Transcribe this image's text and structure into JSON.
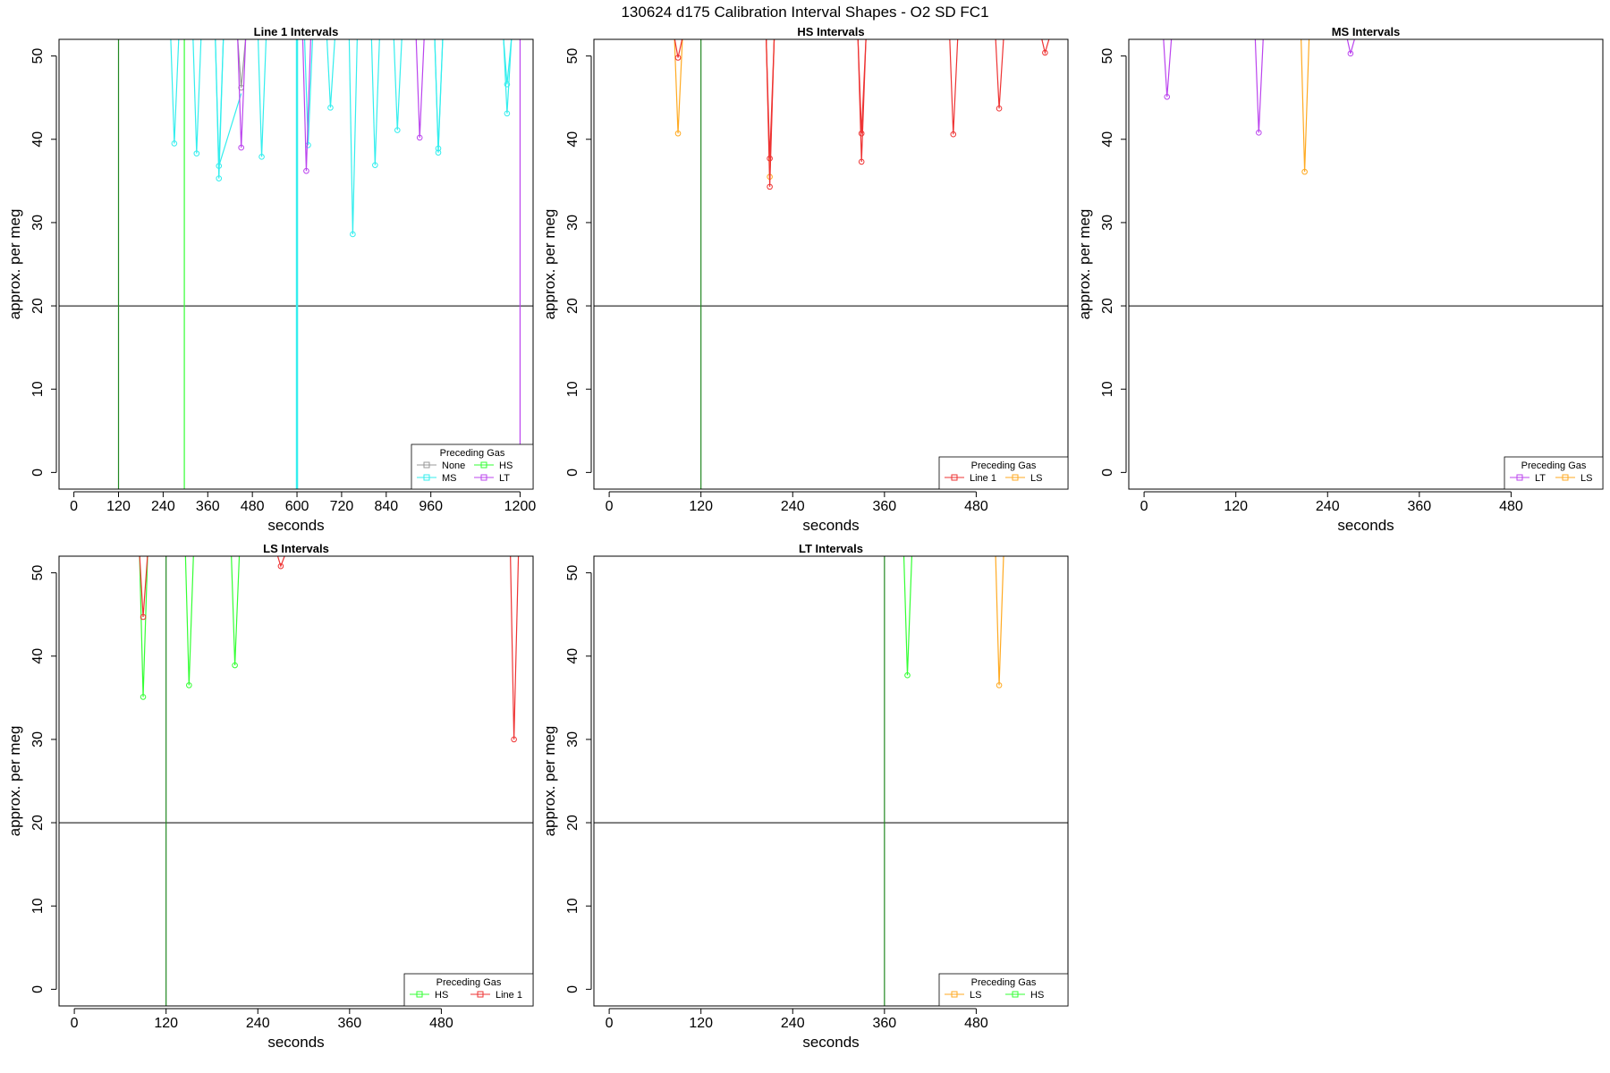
{
  "title": "130624   d175   Calibration Interval Shapes - O2 SD FC1",
  "colors": {
    "None": "#999999",
    "HS": "#33ff33",
    "MS": "#33eeee",
    "LT": "#bb44ee",
    "Line 1": "#ee3333",
    "LS": "#ffaa22",
    "vline": "#228822",
    "axis": "#000000",
    "ref": "#000000"
  },
  "chart_data": [
    {
      "type": "line",
      "title": "Line 1 Intervals",
      "xlabel": "seconds",
      "ylabel": "approx. per meg",
      "xlim": [
        -40,
        1235
      ],
      "ylim": [
        -2,
        52
      ],
      "xticks": [
        0,
        120,
        240,
        360,
        480,
        600,
        720,
        840,
        960,
        1200
      ],
      "yticks": [
        0,
        10,
        20,
        30,
        40,
        50
      ],
      "reference_lines": [
        {
          "orientation": "horizontal",
          "value": 20
        }
      ],
      "vertical_lines": [
        {
          "x": 120,
          "gas": "vline"
        },
        {
          "x": 297,
          "gas": "HS"
        },
        {
          "x": 600,
          "gas": "MS",
          "width": 2.5
        }
      ],
      "legend": {
        "title": "Preceding Gas",
        "entries": [
          "None",
          "HS",
          "MS",
          "LT"
        ],
        "position": "bottom-right"
      },
      "series": [
        {
          "gas": "MS",
          "points": [
            [
              270,
              39.5
            ],
            [
              330,
              38.3
            ],
            [
              390,
              35.3
            ],
            [
              390,
              36.8
            ],
            [
              505,
              37.9
            ],
            [
              630,
              39.3
            ],
            [
              690,
              43.8
            ],
            [
              750,
              28.6
            ],
            [
              810,
              36.9
            ],
            [
              870,
              41.1
            ],
            [
              980,
              38.4
            ],
            [
              980,
              38.9
            ],
            [
              1165,
              43.1
            ],
            [
              1165,
              46.6
            ]
          ]
        },
        {
          "gas": "MS",
          "segments": [
            [
              [
                390,
                36.8
              ],
              [
                450,
                45.5
              ]
            ]
          ]
        },
        {
          "gas": "None",
          "points": [
            [
              450,
              46.2
            ]
          ]
        },
        {
          "gas": "LT",
          "points": [
            [
              450,
              39.0
            ],
            [
              625,
              36.2
            ],
            [
              930,
              40.2
            ]
          ]
        },
        {
          "gas": "LT",
          "segments": [
            [
              [
                1200,
                52
              ],
              [
                1200,
                -2
              ]
            ]
          ]
        }
      ]
    },
    {
      "type": "line",
      "title": "HS Intervals",
      "xlabel": "seconds",
      "ylabel": "approx. per meg",
      "xlim": [
        -20,
        600
      ],
      "ylim": [
        -2,
        52
      ],
      "xticks": [
        0,
        120,
        240,
        360,
        480
      ],
      "yticks": [
        0,
        10,
        20,
        30,
        40,
        50
      ],
      "reference_lines": [
        {
          "orientation": "horizontal",
          "value": 20
        }
      ],
      "vertical_lines": [
        {
          "x": 120,
          "gas": "vline"
        }
      ],
      "legend": {
        "title": "Preceding Gas",
        "entries": [
          "Line 1",
          "LS"
        ],
        "position": "bottom-right"
      },
      "series": [
        {
          "gas": "LS",
          "points": [
            [
              90,
              40.7
            ],
            [
              210,
              35.5
            ]
          ]
        },
        {
          "gas": "Line 1",
          "points": [
            [
              90,
              49.8
            ],
            [
              210,
              34.3
            ],
            [
              210,
              37.7
            ],
            [
              330,
              37.3
            ],
            [
              330,
              40.7
            ],
            [
              450,
              40.6
            ],
            [
              510,
              43.7
            ],
            [
              570,
              50.4
            ]
          ]
        }
      ]
    },
    {
      "type": "line",
      "title": "MS Intervals",
      "xlabel": "seconds",
      "ylabel": "approx. per meg",
      "xlim": [
        -20,
        600
      ],
      "ylim": [
        -2,
        52
      ],
      "xticks": [
        0,
        120,
        240,
        360,
        480
      ],
      "yticks": [
        0,
        10,
        20,
        30,
        40,
        50
      ],
      "reference_lines": [
        {
          "orientation": "horizontal",
          "value": 20
        }
      ],
      "vertical_lines": [],
      "legend": {
        "title": "Preceding Gas",
        "entries": [
          "LT",
          "LS"
        ],
        "position": "bottom-right"
      },
      "series": [
        {
          "gas": "LT",
          "points": [
            [
              30,
              45.1
            ],
            [
              150,
              40.8
            ],
            [
              270,
              50.3
            ]
          ]
        },
        {
          "gas": "LS",
          "points": [
            [
              210,
              36.1
            ]
          ]
        }
      ]
    },
    {
      "type": "line",
      "title": "LS Intervals",
      "xlabel": "seconds",
      "ylabel": "approx. per meg",
      "xlim": [
        -20,
        600
      ],
      "ylim": [
        -2,
        52
      ],
      "xticks": [
        0,
        120,
        240,
        360,
        480
      ],
      "yticks": [
        0,
        10,
        20,
        30,
        40,
        50
      ],
      "reference_lines": [
        {
          "orientation": "horizontal",
          "value": 20
        }
      ],
      "vertical_lines": [
        {
          "x": 120,
          "gas": "vline"
        }
      ],
      "legend": {
        "title": "Preceding Gas",
        "entries": [
          "HS",
          "Line 1"
        ],
        "position": "bottom-right"
      },
      "series": [
        {
          "gas": "HS",
          "points": [
            [
              90,
              35.1
            ],
            [
              150,
              36.5
            ],
            [
              210,
              38.9
            ]
          ]
        },
        {
          "gas": "Line 1",
          "points": [
            [
              90,
              44.7
            ],
            [
              270,
              50.8
            ],
            [
              575,
              30.0
            ]
          ]
        }
      ]
    },
    {
      "type": "line",
      "title": "LT Intervals",
      "xlabel": "seconds",
      "ylabel": "approx. per meg",
      "xlim": [
        -20,
        600
      ],
      "ylim": [
        -2,
        52
      ],
      "xticks": [
        0,
        120,
        240,
        360,
        480
      ],
      "yticks": [
        0,
        10,
        20,
        30,
        40,
        50
      ],
      "reference_lines": [
        {
          "orientation": "horizontal",
          "value": 20
        }
      ],
      "vertical_lines": [
        {
          "x": 360,
          "gas": "vline"
        }
      ],
      "legend": {
        "title": "Preceding Gas",
        "entries": [
          "LS",
          "HS"
        ],
        "position": "bottom-right"
      },
      "series": [
        {
          "gas": "HS",
          "points": [
            [
              390,
              37.7
            ]
          ]
        },
        {
          "gas": "LS",
          "points": [
            [
              510,
              36.5
            ]
          ]
        }
      ]
    }
  ]
}
